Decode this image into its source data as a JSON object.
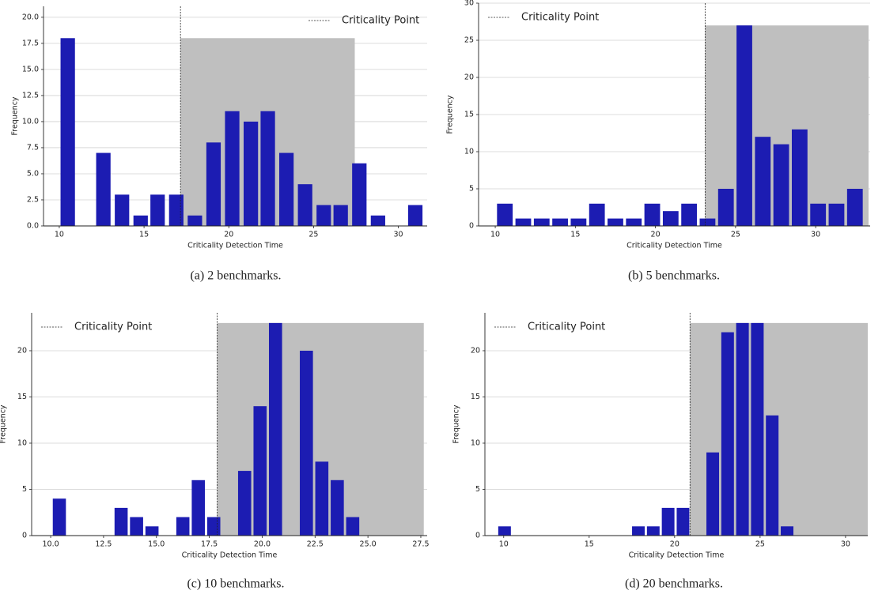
{
  "chart_data": [
    {
      "type": "bar",
      "caption": "(a) 2 benchmarks.",
      "xlabel": "Criticality Detection Time",
      "ylabel": "Frequency",
      "x": [
        10.5,
        11.6,
        12.6,
        13.7,
        14.8,
        15.8,
        16.9,
        18.0,
        19.1,
        20.2,
        21.3,
        22.3,
        23.4,
        24.5,
        25.6,
        26.6,
        27.7,
        28.8,
        29.9,
        31.0
      ],
      "values": [
        18,
        0,
        7,
        3,
        1,
        3,
        3,
        1,
        8,
        11,
        10,
        11,
        7,
        4,
        2,
        2,
        6,
        1,
        0,
        2
      ],
      "color": "#1c1cb2",
      "xlim": [
        9.07,
        31.7
      ],
      "ylim": [
        0,
        21.05
      ],
      "xticks": [
        10,
        15,
        20,
        25,
        30
      ],
      "yticks": [
        {
          "value": 0,
          "label": "0.0"
        },
        {
          "value": 2.5,
          "label": "2.5"
        },
        {
          "value": 5,
          "label": "5.0"
        },
        {
          "value": 7.5,
          "label": "7.5"
        },
        {
          "value": 10,
          "label": "10.0"
        },
        {
          "value": 12.5,
          "label": "12.5"
        },
        {
          "value": 15,
          "label": "15.0"
        },
        {
          "value": 17.5,
          "label": "17.5"
        },
        {
          "value": 20,
          "label": "20.0"
        }
      ],
      "grid": true,
      "legend": "upper right",
      "vline": {
        "x": 17.15,
        "label": "Criticality Point"
      },
      "shade": {
        "x": [
          17.15,
          27.43
        ],
        "height": 18,
        "color": "#bfbfbf"
      }
    },
    {
      "type": "bar",
      "caption": "(b) 5 benchmarks.",
      "xlabel": "Criticality Detection Time",
      "ylabel": "Frequency",
      "x": [
        10.6,
        11.75,
        12.9,
        14.05,
        15.2,
        16.35,
        17.5,
        18.65,
        19.8,
        20.95,
        22.1,
        23.25,
        24.4,
        25.55,
        26.7,
        27.85,
        29.0,
        30.15,
        31.3,
        32.45
      ],
      "values": [
        3,
        1,
        1,
        1,
        1,
        3,
        1,
        1,
        3,
        2,
        3,
        1,
        5,
        27,
        12,
        11,
        13,
        3,
        3,
        5
      ],
      "color": "#1c1cb2",
      "xlim": [
        8.96,
        33.4
      ],
      "ylim": [
        0,
        30
      ],
      "xticks": [
        10,
        15,
        20,
        25,
        30
      ],
      "yticks": [
        0,
        5,
        10,
        15,
        20,
        25,
        30
      ],
      "grid": true,
      "legend": "upper left",
      "vline": {
        "x": 23.1,
        "label": "Criticality Point"
      },
      "shade": {
        "x": [
          23.1,
          33.3
        ],
        "height": 27,
        "color": "#bfbfbf"
      }
    },
    {
      "type": "bar",
      "caption": "(c) 10 benchmarks.",
      "xlabel": "Criticality Detection Time",
      "ylabel": "Frequency",
      "x": [
        10.41,
        11.14,
        11.87,
        12.6,
        13.33,
        14.06,
        14.79,
        15.52,
        16.25,
        16.98,
        17.71,
        18.44,
        19.17,
        19.9,
        20.63,
        21.36,
        22.09,
        22.82,
        23.55,
        24.28
      ],
      "values": [
        4,
        0,
        0,
        0,
        3,
        2,
        1,
        0,
        2,
        6,
        2,
        0,
        7,
        14,
        23,
        0,
        20,
        8,
        6,
        2
      ],
      "color": "#1c1cb2",
      "xlim": [
        9.1,
        27.8
      ],
      "ylim": [
        0,
        24.1
      ],
      "xticks": [
        {
          "value": 10,
          "label": "10.0"
        },
        12.5,
        {
          "value": 15,
          "label": "15.0"
        },
        17.5,
        {
          "value": 20,
          "label": "20.0"
        },
        22.5,
        {
          "value": 25,
          "label": "25.0"
        },
        27.5
      ],
      "yticks": [
        0,
        5,
        10,
        15,
        20
      ],
      "grid": true,
      "legend": "upper left",
      "vline": {
        "x": 17.87,
        "label": "Criticality Point"
      },
      "shade": {
        "x": [
          17.87,
          27.64
        ],
        "height": 23,
        "color": "#bfbfbf"
      }
    },
    {
      "type": "bar",
      "caption": "(d) 20 benchmarks.",
      "xlabel": "Criticality Detection Time",
      "ylabel": "Frequency",
      "x": [
        10.05,
        10.92,
        11.79,
        12.66,
        13.53,
        14.4,
        15.27,
        16.14,
        17.01,
        17.88,
        18.75,
        19.62,
        20.49,
        21.36,
        22.23,
        23.1,
        23.97,
        24.84,
        25.71,
        26.58
      ],
      "values": [
        1,
        0,
        0,
        0,
        0,
        0,
        0,
        0,
        0,
        1,
        1,
        3,
        3,
        0,
        9,
        22,
        23,
        23,
        13,
        1
      ],
      "color": "#1c1cb2",
      "xlim": [
        8.9,
        31.3
      ],
      "ylim": [
        0,
        24.1
      ],
      "xticks": [
        10,
        15,
        20,
        25,
        30
      ],
      "yticks": [
        0,
        5,
        10,
        15,
        20
      ],
      "grid": true,
      "legend": "upper left",
      "vline": {
        "x": 20.9,
        "label": "Criticality Point"
      },
      "shade": {
        "x": [
          20.9,
          31.3
        ],
        "height": 23,
        "color": "#bfbfbf"
      }
    }
  ]
}
